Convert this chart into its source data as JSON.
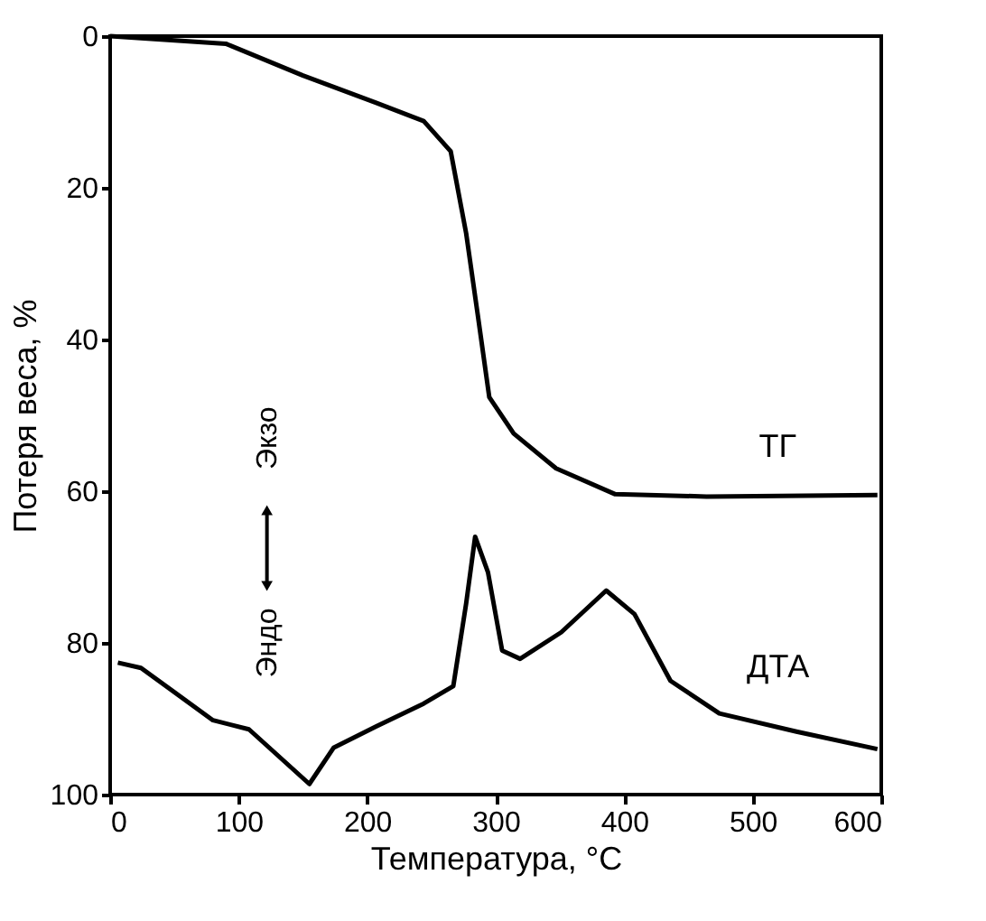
{
  "chart_data": {
    "type": "line",
    "xlabel": "Температура, °C",
    "ylabel": "Потеря веса, %",
    "xlim": [
      0,
      600
    ],
    "ylim": [
      100,
      0
    ],
    "xticks": [
      0,
      100,
      200,
      300,
      400,
      500,
      600
    ],
    "yticks": [
      0,
      20,
      40,
      60,
      80,
      100
    ],
    "line_style": "solid",
    "annotations": [
      "Эндо",
      "Экзо"
    ],
    "series": [
      {
        "name": "ТГ",
        "color": "#000000",
        "x": [
          0,
          90,
          150,
          207,
          244,
          265,
          277,
          286,
          295,
          314,
          347,
          393,
          464,
          597
        ],
        "values": [
          0,
          1,
          5.2,
          8.8,
          11.2,
          15.2,
          26,
          36.7,
          47.6,
          52.4,
          57,
          60.4,
          60.7,
          60.5
        ]
      },
      {
        "name": "ДТА",
        "color": "#000000",
        "x": [
          6,
          24,
          80,
          108,
          155,
          174,
          207,
          244,
          267,
          277,
          284,
          294,
          305,
          319,
          351,
          386,
          408,
          436,
          474,
          534,
          597
        ],
        "values": [
          82.6,
          83.3,
          90.2,
          91.4,
          98.6,
          93.8,
          91,
          88,
          85.7,
          74.8,
          66,
          70.7,
          81,
          82.1,
          78.6,
          73.1,
          76.2,
          85,
          89.3,
          91.7,
          94
        ]
      }
    ]
  }
}
